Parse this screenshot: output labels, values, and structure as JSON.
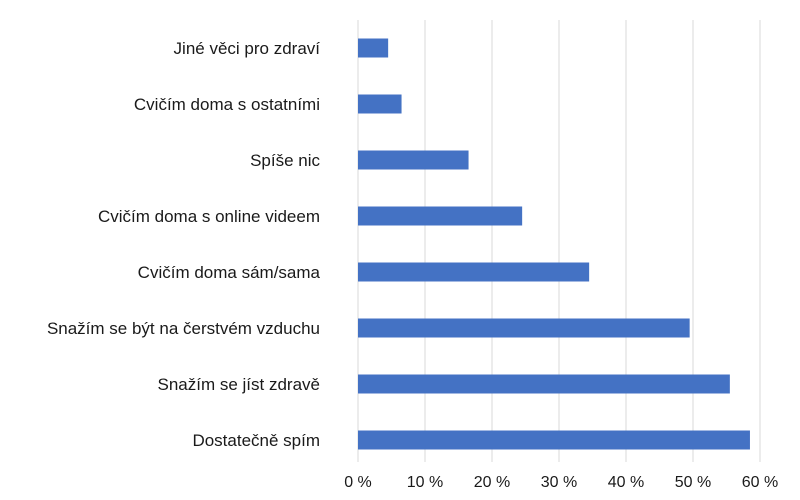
{
  "chart_data": {
    "type": "bar",
    "orientation": "horizontal",
    "title": "",
    "xlabel": "",
    "ylabel": "",
    "categories": [
      "Jiné věci pro zdraví",
      "Cvičím doma s ostatními",
      "Spíše nic",
      "Cvičím doma s online videem",
      "Cvičím doma sám/sama",
      "Snažím se být na čerstvém vzduchu",
      "Snažím se jíst zdravě",
      "Dostatečně spím"
    ],
    "values": [
      4.5,
      6.5,
      16.5,
      24.5,
      34.5,
      49.5,
      55.5,
      58.5
    ],
    "xlim": [
      0,
      60
    ],
    "xticks": [
      0,
      10,
      20,
      30,
      40,
      50,
      60
    ],
    "xtick_labels": [
      "0 %",
      "10 %",
      "20 %",
      "30 %",
      "40 %",
      "50 %",
      "60 %"
    ],
    "grid": true,
    "bar_color": "#4472C4",
    "grid_color": "#d9d9d9"
  }
}
